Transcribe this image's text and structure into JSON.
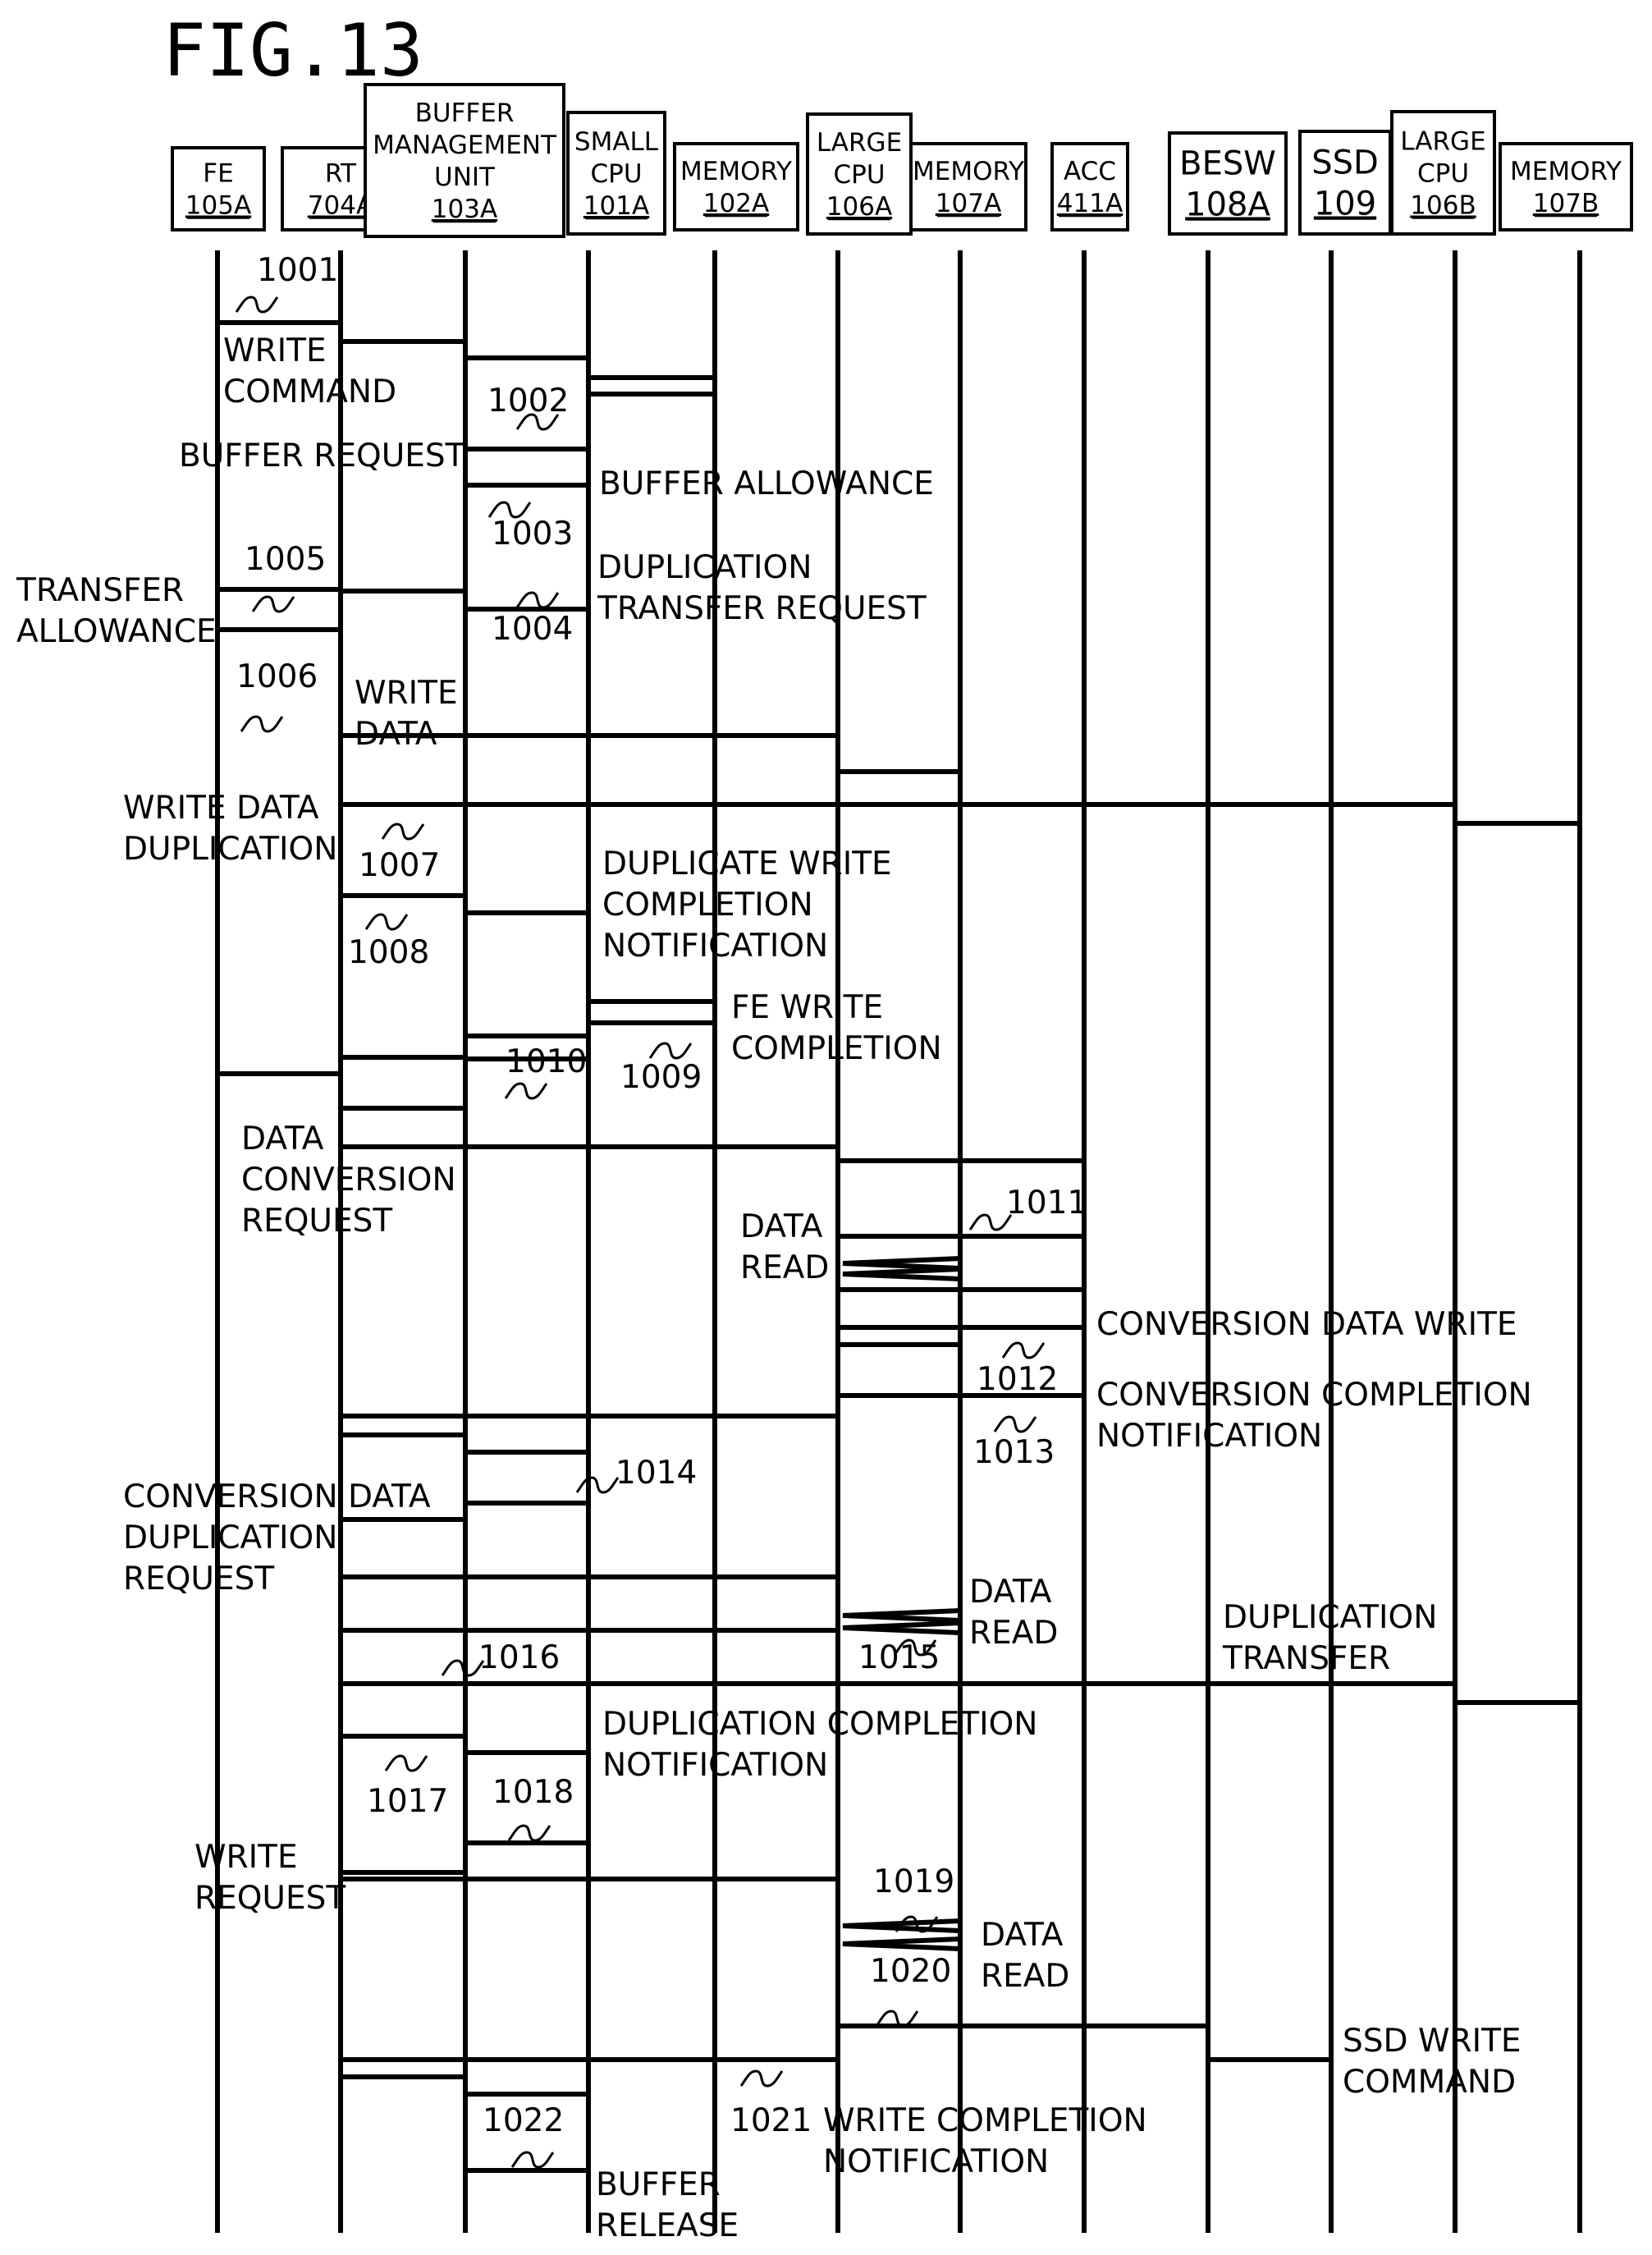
{
  "figure_title": "FIG.13",
  "participants": [
    {
      "id": "fe",
      "lines": [
        "FE"
      ],
      "ref": "105A"
    },
    {
      "id": "rt",
      "lines": [
        "RT"
      ],
      "ref": "704A"
    },
    {
      "id": "bmu",
      "lines": [
        "BUFFER",
        "MANAGEMENT",
        "UNIT"
      ],
      "ref": "103A"
    },
    {
      "id": "scpu",
      "lines": [
        "SMALL",
        "CPU"
      ],
      "ref": "101A"
    },
    {
      "id": "mem102",
      "lines": [
        "MEMORY"
      ],
      "ref": "102A"
    },
    {
      "id": "lcpuA",
      "lines": [
        "LARGE",
        "CPU"
      ],
      "ref": "106A"
    },
    {
      "id": "mem107a",
      "lines": [
        "MEMORY"
      ],
      "ref": "107A"
    },
    {
      "id": "acc",
      "lines": [
        "ACC"
      ],
      "ref": "411A"
    },
    {
      "id": "besw",
      "lines": [
        "BESW"
      ],
      "ref": "108A"
    },
    {
      "id": "ssd",
      "lines": [
        "SSD"
      ],
      "ref": "109"
    },
    {
      "id": "lcpuB",
      "lines": [
        "LARGE",
        "CPU"
      ],
      "ref": "106B"
    },
    {
      "id": "mem107b",
      "lines": [
        "MEMORY"
      ],
      "ref": "107B"
    }
  ],
  "messages": [
    {
      "from": "fe",
      "to": "rt"
    },
    {
      "from": "rt",
      "to": "bmu"
    },
    {
      "from": "bmu",
      "to": "scpu"
    },
    {
      "from": "scpu",
      "to": "mem102"
    },
    {
      "from": "mem102",
      "to": "scpu"
    },
    {
      "from": "scpu",
      "to": "bmu"
    },
    {
      "from": "bmu",
      "to": "scpu"
    },
    {
      "from": "bmu",
      "to": "rt"
    },
    {
      "from": "scpu",
      "to": "bmu"
    },
    {
      "from": "rt",
      "to": "fe"
    },
    {
      "from": "fe",
      "to": "rt"
    },
    {
      "from": "rt",
      "to": "lcpuA"
    },
    {
      "from": "lcpuA",
      "to": "mem107a"
    },
    {
      "from": "rt",
      "to": "lcpuB"
    },
    {
      "from": "lcpuB",
      "to": "mem107b"
    },
    {
      "from": "rt",
      "to": "bmu"
    },
    {
      "from": "bmu",
      "to": "scpu"
    },
    {
      "from": "scpu",
      "to": "mem102"
    },
    {
      "from": "mem102",
      "to": "scpu"
    },
    {
      "from": "scpu",
      "to": "bmu"
    },
    {
      "from": "bmu",
      "to": "rt"
    },
    {
      "from": "rt",
      "to": "fe"
    },
    {
      "from": "scpu",
      "to": "bmu"
    },
    {
      "from": "bmu",
      "to": "rt"
    },
    {
      "from": "rt",
      "to": "lcpuA"
    },
    {
      "from": "lcpuA",
      "to": "acc"
    },
    {
      "from": "acc",
      "to": "lcpuA"
    },
    {
      "from": "mem107a",
      "to": "lcpuA"
    },
    {
      "from": "mem107a",
      "to": "lcpuA"
    },
    {
      "from": "lcpuA",
      "to": "acc"
    },
    {
      "from": "acc",
      "to": "lcpuA"
    },
    {
      "from": "lcpuA",
      "to": "mem107a"
    },
    {
      "from": "acc",
      "to": "lcpuA"
    },
    {
      "from": "lcpuA",
      "to": "rt"
    },
    {
      "from": "rt",
      "to": "bmu"
    },
    {
      "from": "bmu",
      "to": "scpu"
    },
    {
      "from": "scpu",
      "to": "bmu"
    },
    {
      "from": "bmu",
      "to": "rt"
    },
    {
      "from": "rt",
      "to": "lcpuA"
    },
    {
      "from": "mem107a",
      "to": "lcpuA"
    },
    {
      "from": "mem107a",
      "to": "lcpuA"
    },
    {
      "from": "lcpuA",
      "to": "rt"
    },
    {
      "from": "rt",
      "to": "lcpuB"
    },
    {
      "from": "lcpuB",
      "to": "mem107b"
    },
    {
      "from": "rt",
      "to": "bmu"
    },
    {
      "from": "bmu",
      "to": "scpu"
    },
    {
      "from": "scpu",
      "to": "bmu"
    },
    {
      "from": "bmu",
      "to": "rt"
    },
    {
      "from": "rt",
      "to": "lcpuA"
    },
    {
      "from": "mem107a",
      "to": "lcpuA"
    },
    {
      "from": "mem107a",
      "to": "lcpuA"
    },
    {
      "from": "lcpuA",
      "to": "besw"
    },
    {
      "from": "besw",
      "to": "ssd"
    },
    {
      "from": "lcpuA",
      "to": "rt"
    },
    {
      "from": "rt",
      "to": "bmu"
    },
    {
      "from": "bmu",
      "to": "scpu"
    },
    {
      "from": "scpu",
      "to": "bmu"
    }
  ],
  "labels": [
    [
      "WRITE",
      "COMMAND"
    ],
    [
      "BUFFER REQUEST"
    ],
    [
      "BUFFER ALLOWANCE"
    ],
    [
      "DUPLICATION",
      "TRANSFER REQUEST"
    ],
    [
      "TRANSFER",
      "ALLOWANCE"
    ],
    [
      "WRITE",
      "DATA"
    ],
    [
      "WRITE DATA",
      "DUPLICATION"
    ],
    [
      "DUPLICATE WRITE",
      "COMPLETION",
      "NOTIFICATION"
    ],
    [
      "FE WRITE",
      "COMPLETION"
    ],
    [
      "DATA",
      "CONVERSION",
      "REQUEST"
    ],
    [
      "DATA",
      "READ"
    ],
    [
      "CONVERSION DATA WRITE"
    ],
    [
      "CONVERSION COMPLETION",
      "NOTIFICATION"
    ],
    [
      "CONVERSION DATA",
      "DUPLICATION",
      "REQUEST"
    ],
    [
      "DATA",
      "READ"
    ],
    [
      "DUPLICATION",
      "TRANSFER"
    ],
    [
      "DUPLICATION COMPLETION",
      "NOTIFICATION"
    ],
    [
      "WRITE",
      "REQUEST"
    ],
    [
      "DATA",
      "READ"
    ],
    [
      "SSD WRITE",
      "COMMAND"
    ],
    [
      "WRITE COMPLETION",
      "NOTIFICATION"
    ],
    [
      "BUFFER",
      "RELEASE"
    ]
  ],
  "refs": [
    "1001",
    "1002",
    "1003",
    "1004",
    "1005",
    "1006",
    "1007",
    "1008",
    "1009",
    "1010",
    "1011",
    "1012",
    "1013",
    "1014",
    "1015",
    "1016",
    "1017",
    "1018",
    "1019",
    "1020",
    "1021",
    "1022"
  ]
}
